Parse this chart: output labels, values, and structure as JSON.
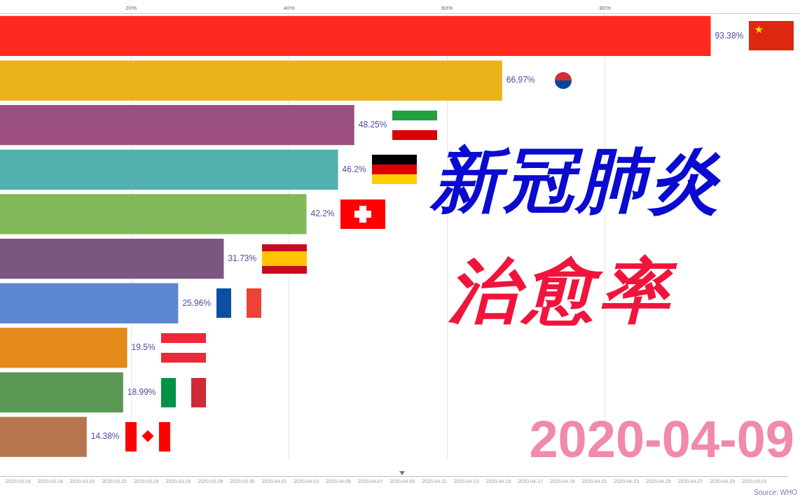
{
  "chart_data": {
    "type": "bar",
    "orientation": "horizontal",
    "title": "新冠肺炎",
    "subtitle": "治愈率",
    "categories": [
      null,
      null,
      null,
      null,
      null,
      null,
      null,
      null,
      null,
      null
    ],
    "values": [
      93.38,
      66.97,
      48.25,
      46.2,
      42.2,
      31.73,
      25.96,
      19.5,
      18.99,
      14.38
    ],
    "colors": [
      "#ff2a1f",
      "#ecb21c",
      "#9b4f7e",
      "#52b0ae",
      "#82b95a",
      "#7b5780",
      "#5b86d0",
      "#e38a1a",
      "#5a9853",
      "#b5764f"
    ],
    "value_labels": [
      "93.38%",
      "66.97%",
      "48.25%",
      "46.2%",
      "42.2%",
      "31.73%",
      "25.96%",
      "19.5%",
      "18.99%",
      "14.38%"
    ],
    "xlim": [
      3.4,
      104.5
    ],
    "xticks": [
      {
        "value": 20,
        "label": "20%"
      },
      {
        "value": 40,
        "label": "40%"
      },
      {
        "value": 60,
        "label": "60%"
      },
      {
        "value": 80,
        "label": "80%"
      }
    ],
    "grid": "x",
    "tick_labels": "x",
    "annotations": [
      "2020-03-16",
      "2020-03-18",
      "2020-03-20",
      "2020-03-22",
      "2020-03-24",
      "2020-03-26",
      "2020-03-28",
      "2020-03-30",
      "2020-04-01",
      "2020-04-03",
      "2020-04-05",
      "2020-04-07",
      "2020-04-09",
      "2020-04-11",
      "2020-04-13",
      "2020-04-15",
      "2020-04-17",
      "2020-04-19",
      "2020-04-21",
      "2020-04-23",
      "2020-04-25",
      "2020-04-27",
      "2020-04-29",
      "2020-05-01",
      "2020-04-09",
      "Source: WHO"
    ]
  }
}
